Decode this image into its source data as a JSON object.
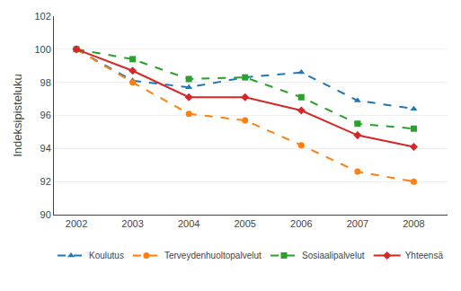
{
  "chart_data": {
    "type": "line",
    "x": [
      2002,
      2003,
      2004,
      2005,
      2006,
      2007,
      2008
    ],
    "series": [
      {
        "name": "Koulutus",
        "values": [
          100.0,
          98.1,
          97.7,
          98.3,
          98.6,
          96.9,
          96.4
        ],
        "line_style": "dash",
        "marker": "triangle-up"
      },
      {
        "name": "Terveydenhuoltopalvelut",
        "values": [
          100.0,
          98.0,
          96.1,
          95.7,
          94.2,
          92.6,
          92.0
        ],
        "line_style": "dash",
        "marker": "circle"
      },
      {
        "name": "Sosiaalipalvelut",
        "values": [
          100.0,
          99.4,
          98.2,
          98.3,
          97.1,
          95.5,
          95.2
        ],
        "line_style": "dash",
        "marker": "square"
      },
      {
        "name": "Yhteensä",
        "values": [
          100.0,
          98.7,
          97.1,
          97.1,
          96.3,
          94.8,
          94.1
        ],
        "line_style": "solid",
        "marker": "diamond"
      }
    ],
    "ylabel": "Indeksipisteluku",
    "xlim": [
      2001.6,
      2008.6
    ],
    "xticks": [
      2002,
      2003,
      2004,
      2005,
      2006,
      2007,
      2008
    ],
    "ylim": [
      90,
      102
    ],
    "yticks": [
      90,
      92,
      94,
      96,
      98,
      100,
      102
    ],
    "grid": "y",
    "legend": "bottom"
  }
}
